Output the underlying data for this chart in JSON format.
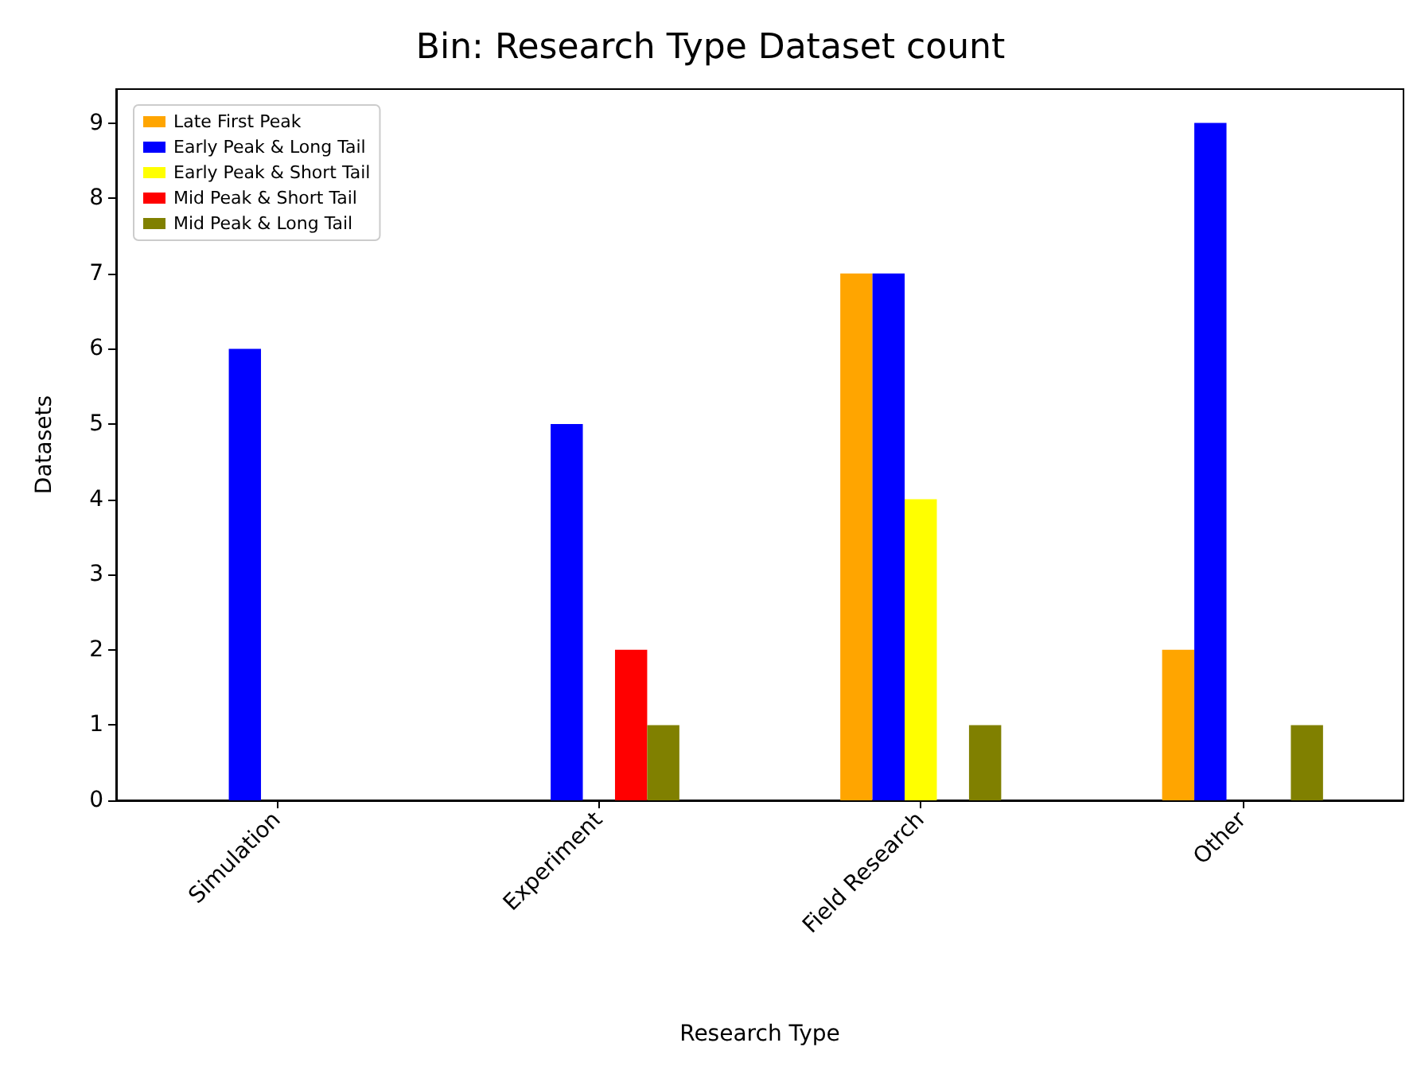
{
  "chart_data": {
    "type": "bar",
    "title": "Bin: Research Type Dataset count",
    "xlabel": "Research Type",
    "ylabel": "Datasets",
    "categories": [
      "Simulation",
      "Experiment",
      "Field Research",
      "Other"
    ],
    "series": [
      {
        "name": "Late First Peak",
        "color": "#ffa500",
        "values": [
          0,
          0,
          7,
          2
        ]
      },
      {
        "name": "Early Peak & Long Tail",
        "color": "#0000ff",
        "values": [
          6,
          5,
          7,
          9
        ]
      },
      {
        "name": "Early Peak & Short Tail",
        "color": "#ffff00",
        "values": [
          0,
          0,
          4,
          0
        ]
      },
      {
        "name": "Mid Peak & Short Tail",
        "color": "#ff0000",
        "values": [
          0,
          2,
          0,
          0
        ]
      },
      {
        "name": "Mid Peak & Long Tail",
        "color": "#808000",
        "values": [
          0,
          1,
          1,
          1
        ]
      }
    ],
    "ylim": [
      0,
      9.45
    ],
    "yticks": [
      0,
      1,
      2,
      3,
      4,
      5,
      6,
      7,
      8,
      9
    ],
    "grid": false,
    "legend": "top left"
  }
}
